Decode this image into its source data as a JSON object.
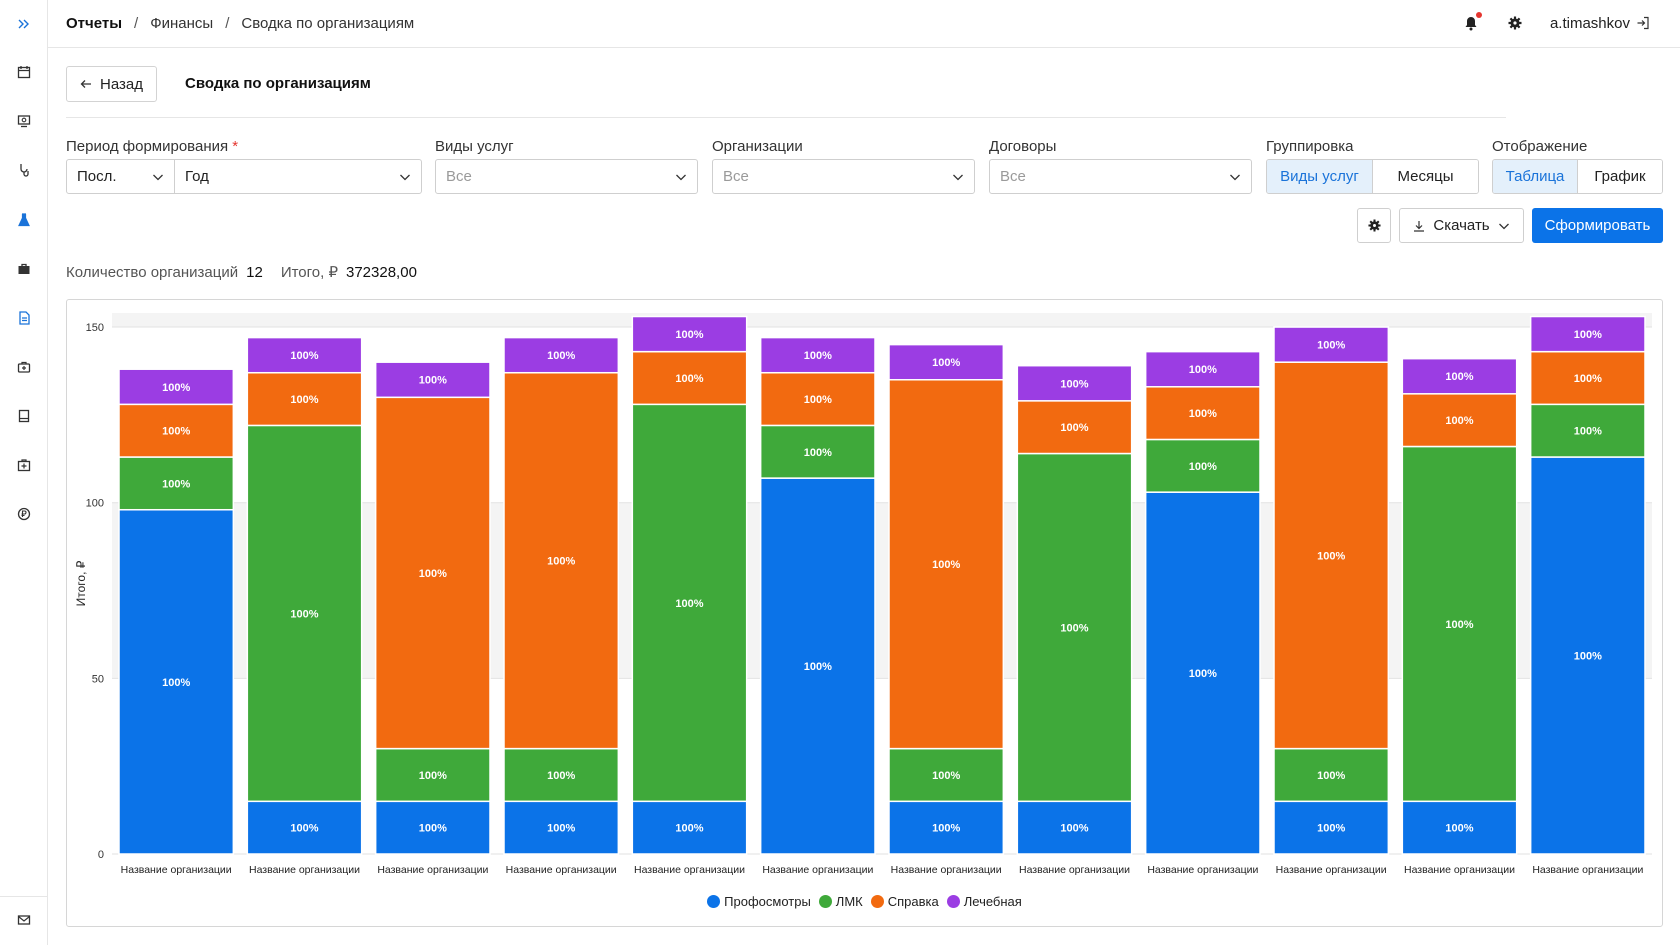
{
  "breadcrumb": [
    "Отчеты",
    "Финансы",
    "Сводка по организациям"
  ],
  "breadcrumb_sep": "/",
  "user": {
    "name": "a.timashkov"
  },
  "header": {
    "back_label": "Назад",
    "title": "Сводка по организациям"
  },
  "filters": {
    "period": {
      "label": "Период формирования",
      "required_mark": "*",
      "mode": "Посл.",
      "value": "Год"
    },
    "services": {
      "label": "Виды услуг",
      "placeholder": "Все"
    },
    "orgs": {
      "label": "Организации",
      "placeholder": "Все"
    },
    "contracts": {
      "label": "Договоры",
      "placeholder": "Все"
    },
    "grouping": {
      "label": "Группировка",
      "options": [
        "Виды услуг",
        "Месяцы"
      ],
      "selected": "Виды услуг"
    },
    "display": {
      "label": "Отображение",
      "options": [
        "Таблица",
        "График"
      ],
      "selected": "Таблица"
    }
  },
  "actions": {
    "download_label": "Скачать",
    "generate_label": "Сформировать"
  },
  "summary": {
    "count_label": "Количество организаций",
    "count_value": "12",
    "total_label": "Итого, ₽",
    "total_value": "372328,00"
  },
  "colors": {
    "accent": "#0b73e8",
    "Профосмотры": "#0b73e8",
    "ЛМК": "#3fa93a",
    "Справка": "#f26a10",
    "Лечебная": "#9b3de3"
  },
  "chart_data": {
    "type": "bar",
    "stacked": true,
    "ylabel": "Итого, ₽",
    "ylim": [
      0,
      154
    ],
    "yticks": [
      0,
      50,
      100,
      150
    ],
    "grid": true,
    "legend_position": "bottom",
    "categories": [
      "Название организации",
      "Название организации",
      "Название организации",
      "Название организации",
      "Название организации",
      "Название организации",
      "Название организации",
      "Название организации",
      "Название организации",
      "Название организации",
      "Название организации",
      "Название организации"
    ],
    "series": [
      {
        "name": "Профосмотры",
        "values": [
          98,
          15,
          15,
          15,
          15,
          107,
          15,
          15,
          103,
          15,
          15,
          113
        ]
      },
      {
        "name": "ЛМК",
        "values": [
          15,
          107,
          15,
          15,
          113,
          15,
          15,
          99,
          15,
          15,
          101,
          15
        ]
      },
      {
        "name": "Справка",
        "values": [
          15,
          15,
          100,
          107,
          15,
          15,
          105,
          15,
          15,
          110,
          15,
          15
        ]
      },
      {
        "name": "Лечебная",
        "values": [
          10,
          10,
          10,
          10,
          10,
          10,
          10,
          10,
          10,
          10,
          10,
          10
        ]
      }
    ],
    "bar_label": "100%"
  }
}
